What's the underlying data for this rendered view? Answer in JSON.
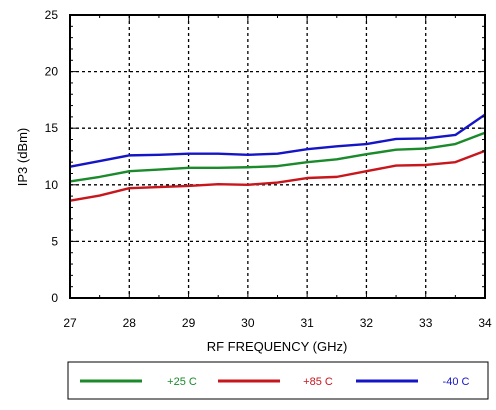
{
  "chart_data": {
    "type": "line",
    "title": "",
    "xlabel": "RF FREQUENCY (GHz)",
    "ylabel": "IP3 (dBm)",
    "xlim": [
      27,
      34
    ],
    "ylim": [
      0,
      25
    ],
    "xticks": [
      27,
      28,
      29,
      30,
      31,
      32,
      33,
      34
    ],
    "yticks": [
      0,
      5,
      10,
      15,
      20,
      25
    ],
    "grid": "dotted",
    "legend_position": "bottom",
    "x": [
      27,
      27.5,
      28,
      28.5,
      29,
      29.5,
      30,
      30.5,
      31,
      31.5,
      32,
      32.5,
      33,
      33.5,
      34
    ],
    "series": [
      {
        "name": "+25 C",
        "color": "#1a8a2a",
        "values": [
          10.3,
          10.7,
          11.2,
          11.35,
          11.5,
          11.5,
          11.55,
          11.65,
          12.0,
          12.25,
          12.7,
          13.1,
          13.2,
          13.6,
          14.6
        ]
      },
      {
        "name": "+85 C",
        "color": "#c8161d",
        "values": [
          8.6,
          9.05,
          9.7,
          9.8,
          9.9,
          10.05,
          10.0,
          10.2,
          10.6,
          10.7,
          11.2,
          11.7,
          11.75,
          12.0,
          13.0
        ]
      },
      {
        "name": "-40 C",
        "color": "#1515c8",
        "values": [
          11.6,
          12.1,
          12.6,
          12.65,
          12.75,
          12.75,
          12.65,
          12.75,
          13.15,
          13.4,
          13.6,
          14.05,
          14.1,
          14.4,
          16.2
        ]
      }
    ]
  }
}
